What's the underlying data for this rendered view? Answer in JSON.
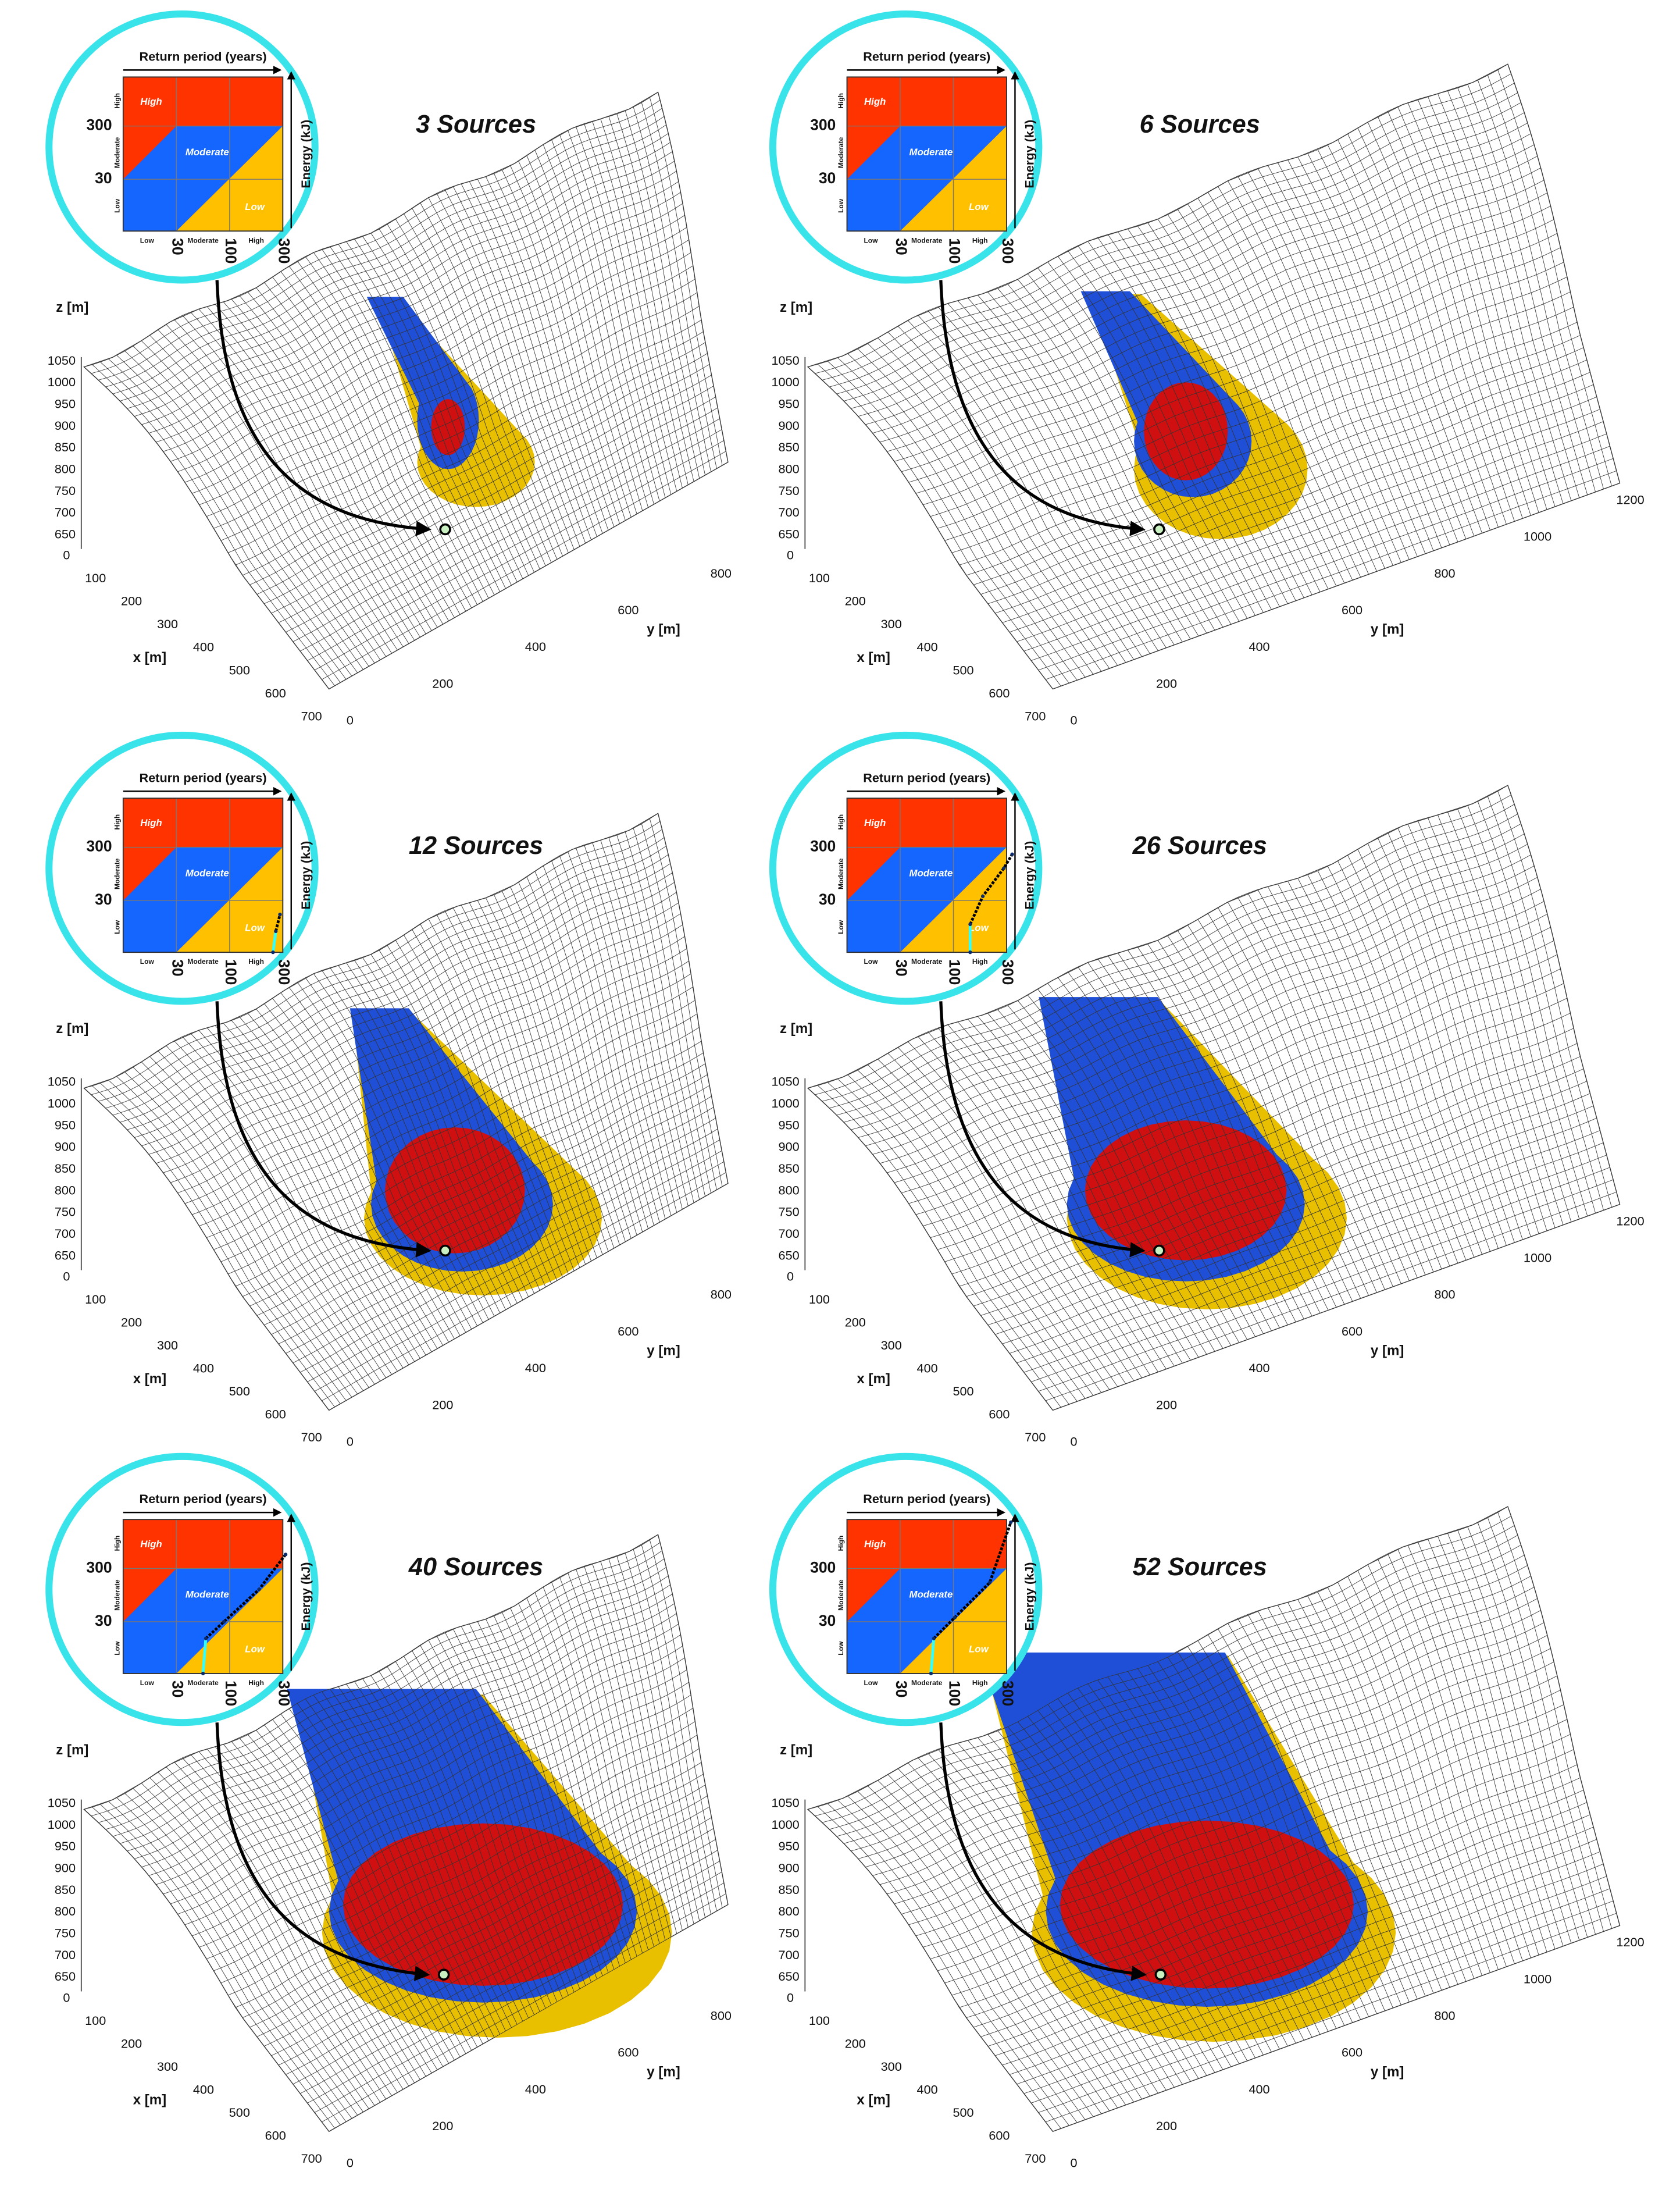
{
  "inset": {
    "x_title": "Return period (years)",
    "y_title": "Energy (kJ)",
    "zones": [
      "High",
      "Moderate",
      "Low"
    ],
    "y_ticks": [
      300,
      30
    ],
    "x_ticks": [
      30,
      100,
      300
    ],
    "y_classes": [
      "High",
      "Moderate",
      "Low"
    ],
    "x_classes": [
      "Low",
      "Moderate",
      "High"
    ]
  },
  "axes": {
    "z_label": "z [m]",
    "x_label": "x [m]",
    "y_label": "y [m]",
    "zticks": [
      1050,
      1000,
      950,
      900,
      850,
      800,
      750,
      700,
      650
    ],
    "xticks": [
      0,
      100,
      200,
      300,
      400,
      500,
      600,
      700
    ]
  },
  "panels": [
    {
      "title": "3 Sources",
      "yticks": [
        0,
        200,
        400,
        600,
        800
      ]
    },
    {
      "title": "6 Sources",
      "yticks": [
        0,
        200,
        400,
        600,
        800,
        1000,
        1200
      ]
    },
    {
      "title": "12 Sources",
      "yticks": [
        0,
        200,
        400,
        600,
        800
      ]
    },
    {
      "title": "26 Sources",
      "yticks": [
        0,
        200,
        400,
        600,
        800,
        1000,
        1200
      ]
    },
    {
      "title": "40 Sources",
      "yticks": [
        0,
        200,
        400,
        600,
        800
      ]
    },
    {
      "title": "52 Sources",
      "yticks": [
        0,
        200,
        400,
        600,
        800,
        1000,
        1200
      ]
    }
  ]
}
